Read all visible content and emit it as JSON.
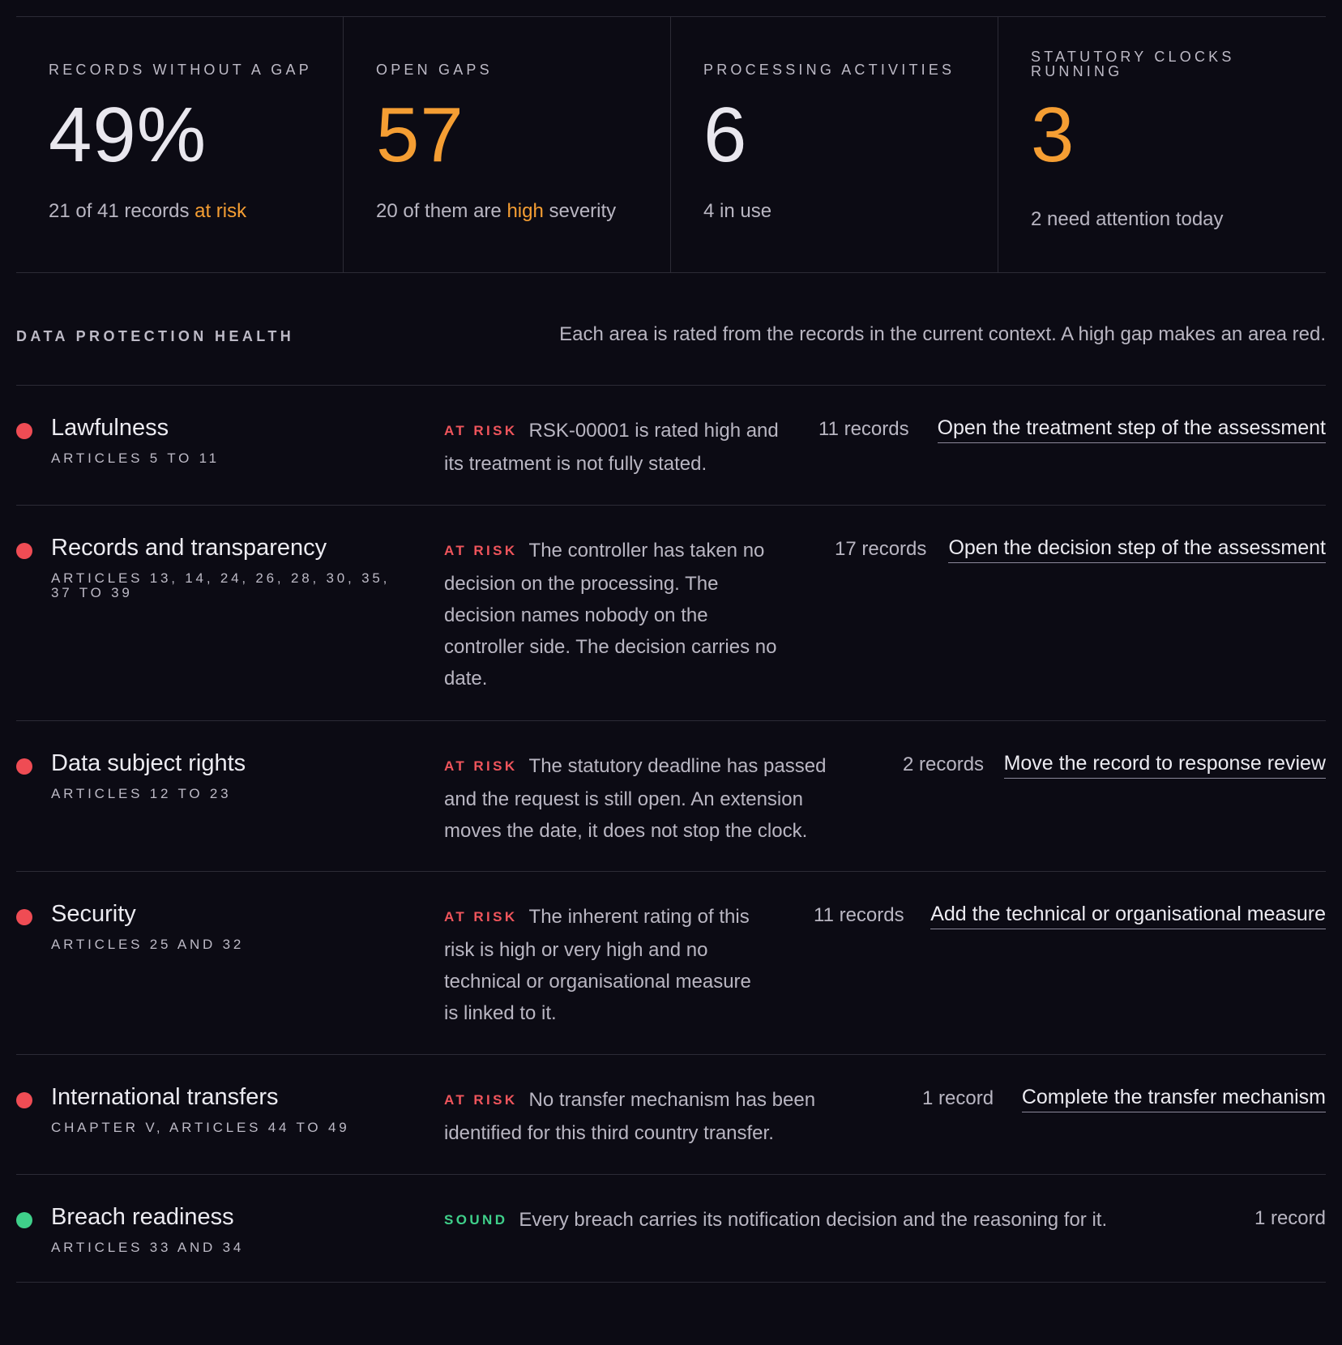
{
  "stats": [
    {
      "label": "RECORDS WITHOUT A GAP",
      "value": "49%",
      "sub_before": "21 of 41 records ",
      "sub_highlight": "at risk",
      "sub_after": ""
    },
    {
      "label": "OPEN GAPS",
      "value": "57",
      "sub_before": "20 of them are ",
      "sub_highlight": "high",
      "sub_after": " severity"
    },
    {
      "label": "PROCESSING ACTIVITIES",
      "value": "6",
      "sub_before": "4 in use",
      "sub_highlight": "",
      "sub_after": ""
    },
    {
      "label_line1": "STATUTORY CLOCKS",
      "label_line2": "RUNNING",
      "value": "3",
      "sub_before": "2 need attention today",
      "sub_highlight": "",
      "sub_after": ""
    }
  ],
  "health": {
    "title": "DATA PROTECTION HEALTH",
    "note": "Each area is rated from the records in the current context. A high gap makes an area red.",
    "rows": [
      {
        "name": "Lawfulness",
        "articles": "ARTICLES 5 TO 11",
        "status": "AT RISK",
        "finding_line1": "RSK-00001 is rated high and",
        "finding_rest": [
          "its treatment is not fully stated."
        ],
        "count": "11 records",
        "action": "Open the treatment step of the assessment"
      },
      {
        "name": "Records and transparency",
        "articles": "ARTICLES 13, 14, 24, 26, 28, 30, 35, 37 TO 39",
        "status": "AT RISK",
        "finding_line1": "The controller has taken no",
        "finding_rest": [
          "decision on the processing. The",
          "decision names nobody on the",
          "controller side. The decision carries no",
          "date."
        ],
        "count": "17 records",
        "action": "Open the decision step of the assessment"
      },
      {
        "name": "Data subject rights",
        "articles": "ARTICLES 12 TO 23",
        "status": "AT RISK",
        "finding_line1": "The statutory deadline has passed",
        "finding_rest": [
          "and the request is still open. An extension",
          "moves the date, it does not stop the clock."
        ],
        "count": "2 records",
        "action": "Move the record to response review"
      },
      {
        "name": "Security",
        "articles": "ARTICLES 25 AND 32",
        "status": "AT RISK",
        "finding_line1": "The inherent rating of this",
        "finding_rest": [
          "risk is high or very high and no",
          "technical or organisational measure",
          "is linked to it."
        ],
        "count": "11 records",
        "action": "Add the technical or organisational measure"
      },
      {
        "name": "International transfers",
        "articles": "CHAPTER V, ARTICLES 44 TO 49",
        "status": "AT RISK",
        "finding_line1": "No transfer mechanism has been",
        "finding_rest": [
          "identified for this third country transfer."
        ],
        "count": "1 record",
        "action": "Complete the transfer mechanism"
      },
      {
        "name": "Breach readiness",
        "articles": "ARTICLES 33 AND 34",
        "status": "SOUND",
        "finding_line1": "Every breach carries its notification decision and the reasoning for it.",
        "finding_rest": [],
        "count": "1 record",
        "action": ""
      }
    ]
  },
  "colors": {
    "background": "#0c0b14",
    "accent_orange": "#f59e33",
    "risk_red": "#ef4c54",
    "sound_green": "#3fd08a"
  }
}
